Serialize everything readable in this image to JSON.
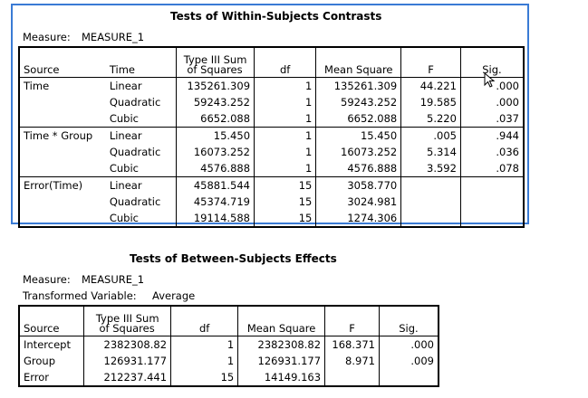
{
  "within": {
    "title": "Tests of Within-Subjects Contrasts",
    "measure_label": "Measure:",
    "measure_value": "MEASURE_1",
    "headers": {
      "source": "Source",
      "time": "Time",
      "sum_sq_line1": "Type III Sum",
      "sum_sq_line2": "of Squares",
      "df": "df",
      "mean_sq": "Mean Square",
      "f": "F",
      "sig": "Sig."
    },
    "groups": [
      {
        "source": "Time",
        "rows": [
          {
            "time": "Linear",
            "ss": "135261.309",
            "df": "1",
            "ms": "135261.309",
            "f": "44.221",
            "sig": ".000"
          },
          {
            "time": "Quadratic",
            "ss": "59243.252",
            "df": "1",
            "ms": "59243.252",
            "f": "19.585",
            "sig": ".000"
          },
          {
            "time": "Cubic",
            "ss": "6652.088",
            "df": "1",
            "ms": "6652.088",
            "f": "5.220",
            "sig": ".037"
          }
        ]
      },
      {
        "source": "Time * Group",
        "rows": [
          {
            "time": "Linear",
            "ss": "15.450",
            "df": "1",
            "ms": "15.450",
            "f": ".005",
            "sig": ".944"
          },
          {
            "time": "Quadratic",
            "ss": "16073.252",
            "df": "1",
            "ms": "16073.252",
            "f": "5.314",
            "sig": ".036"
          },
          {
            "time": "Cubic",
            "ss": "4576.888",
            "df": "1",
            "ms": "4576.888",
            "f": "3.592",
            "sig": ".078"
          }
        ]
      },
      {
        "source": "Error(Time)",
        "rows": [
          {
            "time": "Linear",
            "ss": "45881.544",
            "df": "15",
            "ms": "3058.770",
            "f": "",
            "sig": ""
          },
          {
            "time": "Quadratic",
            "ss": "45374.719",
            "df": "15",
            "ms": "3024.981",
            "f": "",
            "sig": ""
          },
          {
            "time": "Cubic",
            "ss": "19114.588",
            "df": "15",
            "ms": "1274.306",
            "f": "",
            "sig": ""
          }
        ]
      }
    ]
  },
  "between": {
    "title": "Tests of Between-Subjects Effects",
    "measure_label": "Measure:",
    "measure_value": "MEASURE_1",
    "transformed_label": "Transformed Variable:",
    "transformed_value": "Average",
    "headers": {
      "source": "Source",
      "sum_sq_line1": "Type III Sum",
      "sum_sq_line2": "of Squares",
      "df": "df",
      "mean_sq": "Mean Square",
      "f": "F",
      "sig": "Sig."
    },
    "rows": [
      {
        "source": "Intercept",
        "ss": "2382308.82",
        "df": "1",
        "ms": "2382308.82",
        "f": "168.371",
        "sig": ".000"
      },
      {
        "source": "Group",
        "ss": "126931.177",
        "df": "1",
        "ms": "126931.177",
        "f": "8.971",
        "sig": ".009"
      },
      {
        "source": "Error",
        "ss": "212237.441",
        "df": "15",
        "ms": "14149.163",
        "f": "",
        "sig": ""
      }
    ]
  },
  "cursor_icon": "arrow-cursor-icon"
}
